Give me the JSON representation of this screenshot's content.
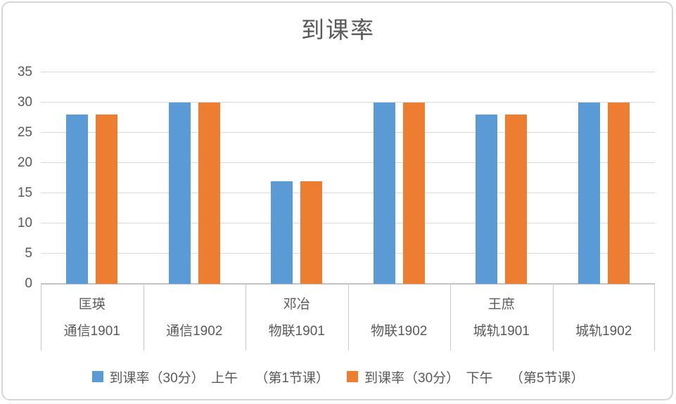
{
  "chart": {
    "title": "到课率",
    "colors": {
      "series1": "#5B9BD5",
      "series2": "#ED7D31",
      "gridline": "#d9d9d9",
      "axis_line": "#c3c3c3",
      "text": "#595959",
      "frame_border": "#d6d6d6"
    }
  },
  "chart_data": {
    "type": "bar",
    "title": "到课率",
    "categories": [
      "通信1901",
      "通信1902",
      "物联1901",
      "物联1902",
      "城轨1901",
      "城轨1902"
    ],
    "group_labels": [
      "匡瑛",
      "",
      "邓冶",
      "",
      "王庶",
      ""
    ],
    "series": [
      {
        "name": "到课率（30分）　上午　 （第1节课）",
        "color": "#5B9BD5",
        "values": [
          28,
          30,
          17,
          30,
          28,
          30
        ]
      },
      {
        "name": "到课率（30分）　下午　 （第5节课）",
        "color": "#ED7D31",
        "values": [
          28,
          30,
          17,
          30,
          28,
          30
        ]
      }
    ],
    "ylim": [
      0,
      35
    ],
    "yticks": [
      0,
      5,
      10,
      15,
      20,
      25,
      30,
      35
    ],
    "grid": true,
    "legend_position": "bottom",
    "xlabel": "",
    "ylabel": ""
  }
}
